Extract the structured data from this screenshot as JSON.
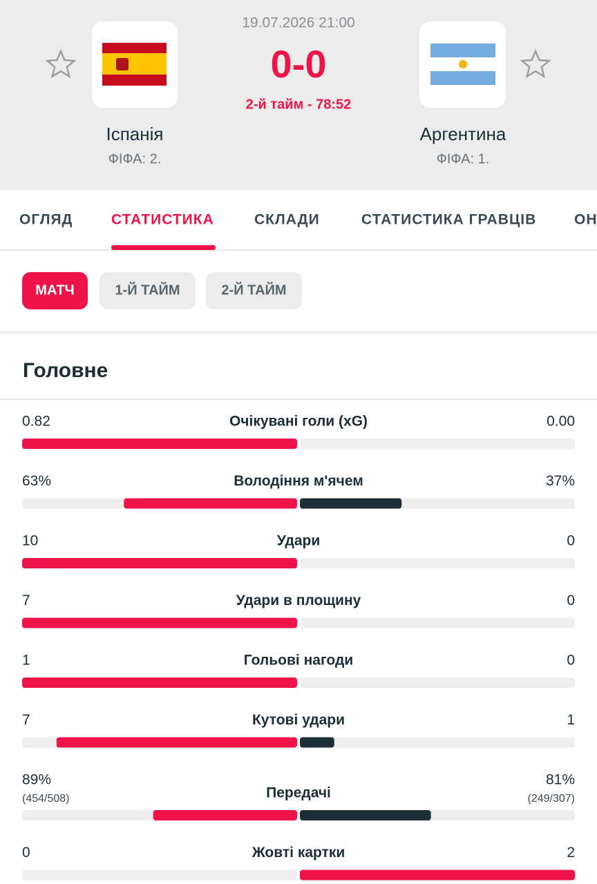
{
  "header": {
    "date": "19.07.2026 21:00",
    "score": "0-0",
    "status": "2-й тайм - 78:52",
    "home": {
      "name": "Іспанія",
      "fifa": "ФІФА: 2."
    },
    "away": {
      "name": "Аргентина",
      "fifa": "ФІФА: 1."
    }
  },
  "tabs": [
    "ОГЛЯД",
    "СТАТИСТИКА",
    "СКЛАДИ",
    "СТАТИСТИКА ГРАВЦІВ",
    "ОН"
  ],
  "period_tabs": [
    "МАТЧ",
    "1-Й ТАЙМ",
    "2-Й ТАЙМ"
  ],
  "section_title": "Головне",
  "stats": [
    {
      "name": "Очікувані голи (xG)",
      "home": 0.82,
      "away": {
        "value": 0,
        "label": "0.00"
      }
    },
    {
      "name": "Володіння м'ячем",
      "home": {
        "value": 63,
        "label": "63%"
      },
      "away": {
        "value": 37,
        "label": "37%"
      }
    },
    {
      "name": "Удари",
      "home": 10,
      "away": 0
    },
    {
      "name": "Удари в площину",
      "home": 7,
      "away": 0
    },
    {
      "name": "Гольові нагоди",
      "home": 1,
      "away": 0
    },
    {
      "name": "Кутові удари",
      "home": 7,
      "away": 1
    },
    {
      "name": "Передачі",
      "home": {
        "value": 89,
        "label": "89%",
        "detail": "(454/508)"
      },
      "away": {
        "value": 81,
        "label": "81%",
        "detail": "(249/307)"
      }
    },
    {
      "name": "Жовті картки",
      "home": 0,
      "away": 2
    }
  ]
}
